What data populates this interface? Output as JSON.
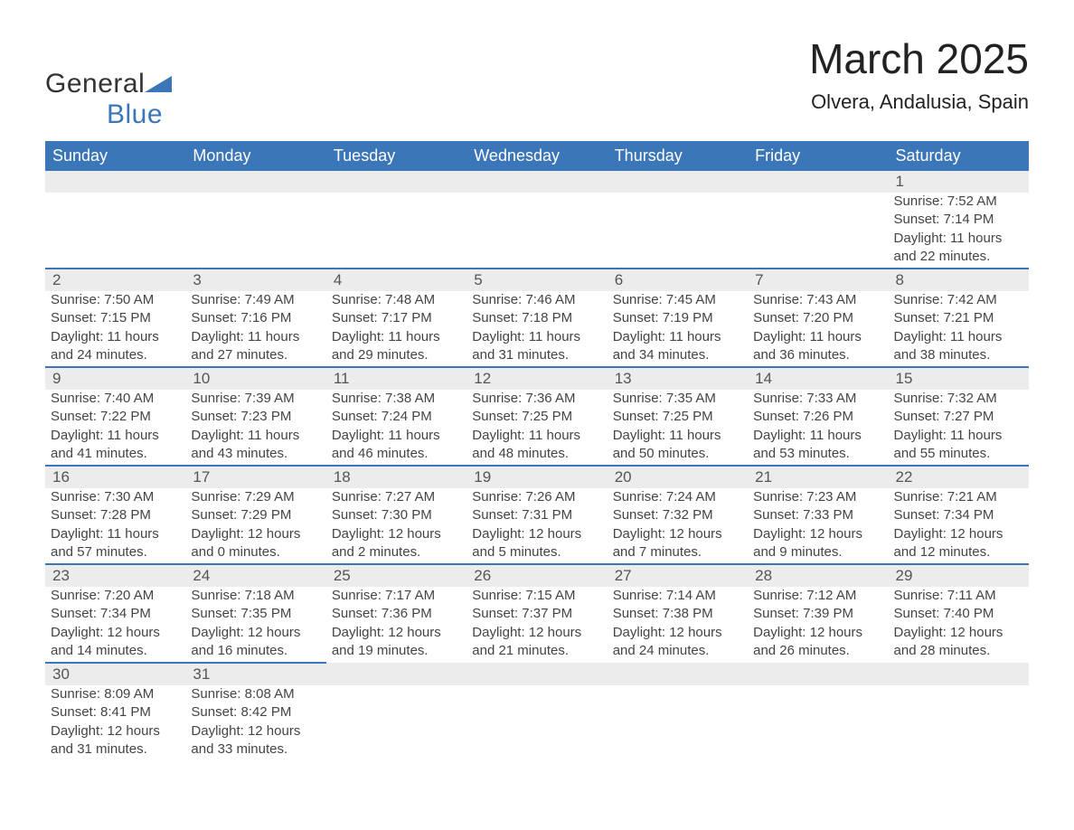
{
  "header": {
    "logo_text_1": "General",
    "logo_text_2": "Blue",
    "month_title": "March 2025",
    "location": "Olvera, Andalusia, Spain"
  },
  "calendar": {
    "day_names": [
      "Sunday",
      "Monday",
      "Tuesday",
      "Wednesday",
      "Thursday",
      "Friday",
      "Saturday"
    ],
    "header_bg": "#3a76b8",
    "header_fg": "#ffffff",
    "row_sep_color": "#3a76b8",
    "daynum_bg": "#ececec",
    "text_color": "#444444",
    "weeks": [
      [
        {
          "blank": true
        },
        {
          "blank": true
        },
        {
          "blank": true
        },
        {
          "blank": true
        },
        {
          "blank": true
        },
        {
          "blank": true
        },
        {
          "day": "1",
          "sunrise": "Sunrise: 7:52 AM",
          "sunset": "Sunset: 7:14 PM",
          "dl1": "Daylight: 11 hours",
          "dl2": "and 22 minutes."
        }
      ],
      [
        {
          "day": "2",
          "sunrise": "Sunrise: 7:50 AM",
          "sunset": "Sunset: 7:15 PM",
          "dl1": "Daylight: 11 hours",
          "dl2": "and 24 minutes."
        },
        {
          "day": "3",
          "sunrise": "Sunrise: 7:49 AM",
          "sunset": "Sunset: 7:16 PM",
          "dl1": "Daylight: 11 hours",
          "dl2": "and 27 minutes."
        },
        {
          "day": "4",
          "sunrise": "Sunrise: 7:48 AM",
          "sunset": "Sunset: 7:17 PM",
          "dl1": "Daylight: 11 hours",
          "dl2": "and 29 minutes."
        },
        {
          "day": "5",
          "sunrise": "Sunrise: 7:46 AM",
          "sunset": "Sunset: 7:18 PM",
          "dl1": "Daylight: 11 hours",
          "dl2": "and 31 minutes."
        },
        {
          "day": "6",
          "sunrise": "Sunrise: 7:45 AM",
          "sunset": "Sunset: 7:19 PM",
          "dl1": "Daylight: 11 hours",
          "dl2": "and 34 minutes."
        },
        {
          "day": "7",
          "sunrise": "Sunrise: 7:43 AM",
          "sunset": "Sunset: 7:20 PM",
          "dl1": "Daylight: 11 hours",
          "dl2": "and 36 minutes."
        },
        {
          "day": "8",
          "sunrise": "Sunrise: 7:42 AM",
          "sunset": "Sunset: 7:21 PM",
          "dl1": "Daylight: 11 hours",
          "dl2": "and 38 minutes."
        }
      ],
      [
        {
          "day": "9",
          "sunrise": "Sunrise: 7:40 AM",
          "sunset": "Sunset: 7:22 PM",
          "dl1": "Daylight: 11 hours",
          "dl2": "and 41 minutes."
        },
        {
          "day": "10",
          "sunrise": "Sunrise: 7:39 AM",
          "sunset": "Sunset: 7:23 PM",
          "dl1": "Daylight: 11 hours",
          "dl2": "and 43 minutes."
        },
        {
          "day": "11",
          "sunrise": "Sunrise: 7:38 AM",
          "sunset": "Sunset: 7:24 PM",
          "dl1": "Daylight: 11 hours",
          "dl2": "and 46 minutes."
        },
        {
          "day": "12",
          "sunrise": "Sunrise: 7:36 AM",
          "sunset": "Sunset: 7:25 PM",
          "dl1": "Daylight: 11 hours",
          "dl2": "and 48 minutes."
        },
        {
          "day": "13",
          "sunrise": "Sunrise: 7:35 AM",
          "sunset": "Sunset: 7:25 PM",
          "dl1": "Daylight: 11 hours",
          "dl2": "and 50 minutes."
        },
        {
          "day": "14",
          "sunrise": "Sunrise: 7:33 AM",
          "sunset": "Sunset: 7:26 PM",
          "dl1": "Daylight: 11 hours",
          "dl2": "and 53 minutes."
        },
        {
          "day": "15",
          "sunrise": "Sunrise: 7:32 AM",
          "sunset": "Sunset: 7:27 PM",
          "dl1": "Daylight: 11 hours",
          "dl2": "and 55 minutes."
        }
      ],
      [
        {
          "day": "16",
          "sunrise": "Sunrise: 7:30 AM",
          "sunset": "Sunset: 7:28 PM",
          "dl1": "Daylight: 11 hours",
          "dl2": "and 57 minutes."
        },
        {
          "day": "17",
          "sunrise": "Sunrise: 7:29 AM",
          "sunset": "Sunset: 7:29 PM",
          "dl1": "Daylight: 12 hours",
          "dl2": "and 0 minutes."
        },
        {
          "day": "18",
          "sunrise": "Sunrise: 7:27 AM",
          "sunset": "Sunset: 7:30 PM",
          "dl1": "Daylight: 12 hours",
          "dl2": "and 2 minutes."
        },
        {
          "day": "19",
          "sunrise": "Sunrise: 7:26 AM",
          "sunset": "Sunset: 7:31 PM",
          "dl1": "Daylight: 12 hours",
          "dl2": "and 5 minutes."
        },
        {
          "day": "20",
          "sunrise": "Sunrise: 7:24 AM",
          "sunset": "Sunset: 7:32 PM",
          "dl1": "Daylight: 12 hours",
          "dl2": "and 7 minutes."
        },
        {
          "day": "21",
          "sunrise": "Sunrise: 7:23 AM",
          "sunset": "Sunset: 7:33 PM",
          "dl1": "Daylight: 12 hours",
          "dl2": "and 9 minutes."
        },
        {
          "day": "22",
          "sunrise": "Sunrise: 7:21 AM",
          "sunset": "Sunset: 7:34 PM",
          "dl1": "Daylight: 12 hours",
          "dl2": "and 12 minutes."
        }
      ],
      [
        {
          "day": "23",
          "sunrise": "Sunrise: 7:20 AM",
          "sunset": "Sunset: 7:34 PM",
          "dl1": "Daylight: 12 hours",
          "dl2": "and 14 minutes."
        },
        {
          "day": "24",
          "sunrise": "Sunrise: 7:18 AM",
          "sunset": "Sunset: 7:35 PM",
          "dl1": "Daylight: 12 hours",
          "dl2": "and 16 minutes."
        },
        {
          "day": "25",
          "sunrise": "Sunrise: 7:17 AM",
          "sunset": "Sunset: 7:36 PM",
          "dl1": "Daylight: 12 hours",
          "dl2": "and 19 minutes."
        },
        {
          "day": "26",
          "sunrise": "Sunrise: 7:15 AM",
          "sunset": "Sunset: 7:37 PM",
          "dl1": "Daylight: 12 hours",
          "dl2": "and 21 minutes."
        },
        {
          "day": "27",
          "sunrise": "Sunrise: 7:14 AM",
          "sunset": "Sunset: 7:38 PM",
          "dl1": "Daylight: 12 hours",
          "dl2": "and 24 minutes."
        },
        {
          "day": "28",
          "sunrise": "Sunrise: 7:12 AM",
          "sunset": "Sunset: 7:39 PM",
          "dl1": "Daylight: 12 hours",
          "dl2": "and 26 minutes."
        },
        {
          "day": "29",
          "sunrise": "Sunrise: 7:11 AM",
          "sunset": "Sunset: 7:40 PM",
          "dl1": "Daylight: 12 hours",
          "dl2": "and 28 minutes."
        }
      ],
      [
        {
          "day": "30",
          "sunrise": "Sunrise: 8:09 AM",
          "sunset": "Sunset: 8:41 PM",
          "dl1": "Daylight: 12 hours",
          "dl2": "and 31 minutes."
        },
        {
          "day": "31",
          "sunrise": "Sunrise: 8:08 AM",
          "sunset": "Sunset: 8:42 PM",
          "dl1": "Daylight: 12 hours",
          "dl2": "and 33 minutes."
        },
        {
          "blank": true
        },
        {
          "blank": true
        },
        {
          "blank": true
        },
        {
          "blank": true
        },
        {
          "blank": true
        }
      ]
    ]
  }
}
